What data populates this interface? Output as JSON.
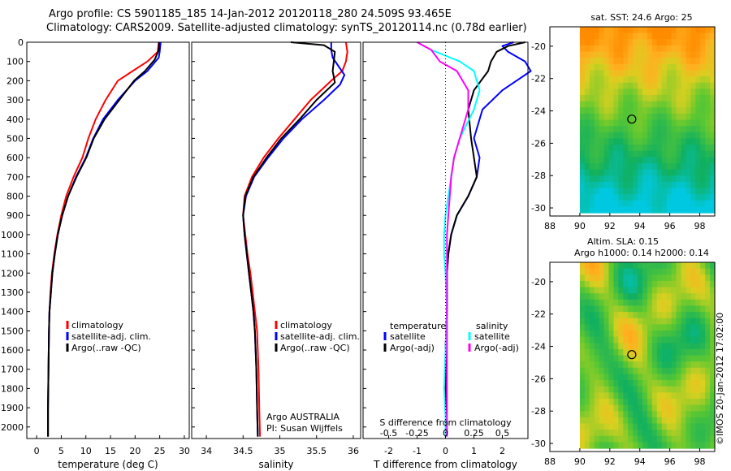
{
  "header": {
    "line1": "Argo profile: CS 5901185_185 14-Jan-2012 20120118_280 24.509S 93.465E",
    "line2": "Climatology: CARS2009. Satellite-adjusted climatology: synTS_20120114.nc (0.78d earlier)"
  },
  "watermark": "©IMOS 20-Jan-2012 17:02:00",
  "chart_data": [
    {
      "type": "line",
      "panel": "temperature",
      "xlabel": "temperature (deg C)",
      "ylabel": "",
      "xlim": [
        -2,
        31
      ],
      "ylim": [
        2060,
        0
      ],
      "xticks": [
        0,
        5,
        10,
        15,
        20,
        25,
        30
      ],
      "yticks": [
        0,
        100,
        200,
        300,
        400,
        500,
        600,
        700,
        800,
        900,
        1000,
        1100,
        1200,
        1300,
        1400,
        1500,
        1600,
        1700,
        1800,
        1900,
        2000
      ],
      "legend": [
        "climatology",
        "satellite-adj. clim.",
        "Argo(..raw -QC)"
      ],
      "legend_position": "lower-center",
      "series": [
        {
          "name": "climatology",
          "color": "#ff0000",
          "x": [
            24.8,
            24.6,
            22.5,
            19.5,
            16.5,
            14,
            12,
            10.5,
            9.3,
            7.5,
            6,
            5,
            4.2,
            3.6,
            3.1,
            2.8,
            2.6,
            2.5,
            2.4,
            2.3,
            2.3
          ],
          "y": [
            0,
            50,
            100,
            150,
            200,
            300,
            400,
            500,
            600,
            700,
            800,
            900,
            1000,
            1100,
            1200,
            1300,
            1400,
            1500,
            1700,
            1900,
            2050
          ]
        },
        {
          "name": "satellite-adj. clim.",
          "color": "#0000ff",
          "x": [
            25.2,
            25,
            24.8,
            22.5,
            20,
            16.5,
            13.5,
            11.5,
            10,
            8,
            6.4,
            5.2,
            4.3,
            3.7,
            3.2,
            2.9,
            2.6,
            2.5,
            2.4,
            2.3,
            2.3
          ],
          "y": [
            0,
            50,
            80,
            150,
            200,
            300,
            400,
            500,
            600,
            700,
            800,
            900,
            1000,
            1100,
            1200,
            1300,
            1400,
            1500,
            1700,
            1900,
            2050
          ]
        },
        {
          "name": "Argo(..raw -QC)",
          "color": "#000000",
          "x": [
            24.9,
            24.8,
            24,
            22,
            19.8,
            16.8,
            13.8,
            11.6,
            10.1,
            8.1,
            6.4,
            5.2,
            4.3,
            3.7,
            3.2,
            2.9,
            2.6,
            2.5,
            2.4,
            2.3,
            2.3
          ],
          "y": [
            0,
            40,
            90,
            150,
            200,
            300,
            400,
            500,
            600,
            700,
            800,
            900,
            1000,
            1100,
            1200,
            1300,
            1400,
            1500,
            1700,
            1900,
            2050
          ]
        }
      ]
    },
    {
      "type": "line",
      "panel": "salinity",
      "xlabel": "salinity",
      "xlim": [
        33.8,
        36.1
      ],
      "ylim": [
        2060,
        0
      ],
      "xticks": [
        34,
        34.5,
        35,
        35.5,
        36
      ],
      "legend": [
        "climatology",
        "satellite-adj. clim.",
        "Argo(..raw -QC)"
      ],
      "legend_position": "lower-right",
      "annotation": [
        "Argo AUSTRALIA",
        "PI: Susan Wijffels"
      ],
      "series": [
        {
          "name": "climatology",
          "color": "#ff0000",
          "x": [
            35.9,
            35.92,
            35.9,
            35.85,
            35.7,
            35.42,
            35.2,
            34.98,
            34.78,
            34.62,
            34.52,
            34.5,
            34.53,
            34.56,
            34.6,
            34.63,
            34.66,
            34.69,
            34.71,
            34.72,
            34.73
          ],
          "y": [
            0,
            50,
            100,
            150,
            200,
            300,
            400,
            500,
            600,
            700,
            800,
            900,
            1000,
            1100,
            1200,
            1300,
            1400,
            1500,
            1700,
            1900,
            2050
          ]
        },
        {
          "name": "satellite-adj. clim.",
          "color": "#0000ff",
          "x": [
            35.7,
            35.7,
            35.72,
            35.88,
            35.82,
            35.6,
            35.3,
            35.05,
            34.84,
            34.65,
            34.54,
            34.5,
            34.52,
            34.55,
            34.58,
            34.61,
            34.64,
            34.66,
            34.68,
            34.69,
            34.7
          ],
          "y": [
            0,
            40,
            80,
            170,
            220,
            300,
            400,
            500,
            600,
            700,
            800,
            900,
            1000,
            1100,
            1200,
            1300,
            1400,
            1500,
            1700,
            1900,
            2050
          ]
        },
        {
          "name": "Argo(..raw -QC)",
          "color": "#000000",
          "x": [
            35.15,
            35.6,
            35.75,
            35.72,
            35.75,
            35.5,
            35.27,
            35.02,
            34.82,
            34.64,
            34.53,
            34.5,
            34.52,
            34.55,
            34.58,
            34.61,
            34.64,
            34.66,
            34.68,
            34.69,
            34.7
          ],
          "y": [
            0,
            15,
            50,
            150,
            210,
            300,
            400,
            500,
            600,
            700,
            800,
            900,
            1000,
            1100,
            1200,
            1300,
            1400,
            1500,
            1700,
            1900,
            2050
          ]
        }
      ]
    },
    {
      "type": "line",
      "panel": "difference",
      "xlabel": "T difference from climatology",
      "xlabel_top": "S difference from climatology",
      "xlim": [
        -2.9,
        2.9
      ],
      "ylim": [
        2060,
        0
      ],
      "xticks": [
        -2,
        -1,
        0,
        1,
        2
      ],
      "xticks_top_labels": [
        "-0.5",
        "-0.25",
        "0",
        "0.25",
        "0.5"
      ],
      "legend": [
        "temperature",
        "satellite",
        "Argo(-adj)",
        "salinity",
        "satellite",
        "Argo(-adj)"
      ],
      "legend_position": "lower-center",
      "series": [
        {
          "name": "satellite",
          "color": "#0000ff",
          "quantity": "temperature",
          "x": [
            2.4,
            2.0,
            2.2,
            2.8,
            3.0,
            2.0,
            1.3,
            1.0,
            1.2,
            1.1,
            0.8,
            0.4,
            0.2,
            0.1,
            0.05,
            0.05,
            0.0,
            0.0,
            0.0,
            0.0
          ],
          "y": [
            0,
            20,
            50,
            100,
            150,
            250,
            350,
            500,
            600,
            700,
            800,
            900,
            1000,
            1100,
            1200,
            1400,
            1600,
            1800,
            1950,
            2050
          ]
        },
        {
          "name": "Argo(-adj)",
          "color": "#000000",
          "quantity": "temperature",
          "x": [
            2.8,
            2.2,
            1.8,
            1.6,
            1.5,
            1.0,
            0.8,
            0.9,
            1.0,
            1.1,
            0.8,
            0.4,
            0.2,
            0.1,
            0.05,
            0.05,
            0.0,
            0.0,
            0.0,
            0.0
          ],
          "y": [
            0,
            20,
            50,
            100,
            150,
            250,
            350,
            500,
            600,
            700,
            800,
            900,
            1000,
            1100,
            1200,
            1400,
            1600,
            1800,
            1950,
            2050
          ]
        },
        {
          "name": "satellite",
          "color": "#00ffff",
          "quantity": "salinity",
          "x": [
            -1.0,
            -0.5,
            0.5,
            1.0,
            1.2,
            1.0,
            0.5,
            0.3,
            0.2,
            0.1,
            0.0,
            -0.05,
            -0.05,
            0.0,
            0.05,
            0.0,
            -0.05,
            0.0,
            0.0
          ],
          "y": [
            0,
            40,
            100,
            150,
            250,
            350,
            500,
            600,
            700,
            800,
            900,
            1000,
            1100,
            1200,
            1400,
            1600,
            1800,
            1950,
            2050
          ]
        },
        {
          "name": "Argo(-adj)",
          "color": "#ff00ff",
          "quantity": "salinity",
          "x": [
            -1.0,
            -0.5,
            -0.2,
            0.4,
            0.8,
            0.8,
            0.5,
            0.3,
            0.2,
            0.15,
            0.1,
            0.05,
            0.05,
            0.05,
            0.05,
            0.05,
            0.05,
            0.05,
            0.05
          ],
          "y": [
            0,
            40,
            100,
            150,
            250,
            350,
            500,
            600,
            700,
            800,
            900,
            1000,
            1100,
            1200,
            1400,
            1600,
            1800,
            1950,
            2050
          ]
        }
      ]
    },
    {
      "type": "heatmap",
      "panel": "map-sst",
      "title": "sat. SST: 24.6  Argo: 25",
      "xlim": [
        88,
        99
      ],
      "ylim": [
        -30.5,
        -18.8
      ],
      "xticks": [
        88,
        90,
        92,
        94,
        96,
        98
      ],
      "yticks": [
        -20,
        -22,
        -24,
        -26,
        -28,
        -30
      ],
      "marker": {
        "lon": 93.465,
        "lat": -24.509
      }
    },
    {
      "type": "heatmap",
      "panel": "map-sla",
      "title": "Altim. SLA: 0.15",
      "subtitle": "Argo h1000: 0.14 h2000: 0.14",
      "xlim": [
        88,
        99
      ],
      "ylim": [
        -30.5,
        -18.8
      ],
      "xticks": [
        88,
        90,
        92,
        94,
        96,
        98
      ],
      "yticks": [
        -20,
        -22,
        -24,
        -26,
        -28,
        -30
      ],
      "marker": {
        "lon": 93.465,
        "lat": -24.509
      }
    }
  ]
}
